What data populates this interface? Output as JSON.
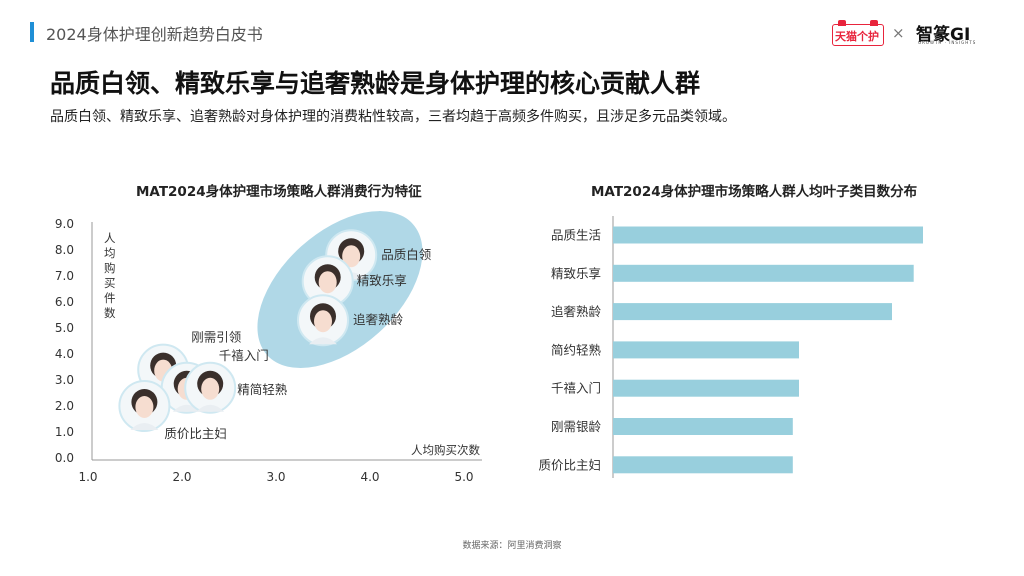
{
  "header": {
    "title": "2024身体护理创新趋势白皮书",
    "logo_tmall": "天猫个护",
    "separator": "×",
    "logo_gi": "智篆GI",
    "logo_gi_sub": "GROWTH · INSIGHTS"
  },
  "page": {
    "title": "品质白领、精致乐享与追奢熟龄是身体护理的核心贡献人群",
    "subtitle": "品质白领、精致乐享、追奢熟龄对身体护理的消费粘性较高，三者均趋于高频多件购买，且涉足多元品类领域。"
  },
  "chart_data": [
    {
      "type": "scatter",
      "title": "MAT2024身体护理市场策略人群消费行为特征",
      "xlabel": "人均购买次数",
      "ylabel": "人均购买件数",
      "xlim": [
        1.0,
        5.0
      ],
      "ylim": [
        0.0,
        9.0
      ],
      "x_ticks": [
        "1.0",
        "2.0",
        "3.0",
        "4.0",
        "5.0"
      ],
      "y_ticks": [
        "0.0",
        "1.0",
        "2.0",
        "3.0",
        "4.0",
        "5.0",
        "6.0",
        "7.0",
        "8.0",
        "9.0"
      ],
      "grid": false,
      "points": [
        {
          "label": "品质白领",
          "x": 3.8,
          "y": 7.8
        },
        {
          "label": "精致乐享",
          "x": 3.55,
          "y": 6.8
        },
        {
          "label": "追奢熟龄",
          "x": 3.5,
          "y": 5.3
        },
        {
          "label": "刚需引领",
          "x": 1.8,
          "y": 3.4
        },
        {
          "label": "千禧入门",
          "x": 2.05,
          "y": 2.7
        },
        {
          "label": "精简轻熟",
          "x": 2.3,
          "y": 2.7
        },
        {
          "label": "质价比主妇",
          "x": 1.6,
          "y": 2.0
        }
      ],
      "highlight_group": [
        "品质白领",
        "精致乐享",
        "追奢熟龄"
      ],
      "colors": {
        "axis": "#999999",
        "highlight": "#a7d4e4",
        "avatar_ring": "#cfe8f1"
      }
    },
    {
      "type": "bar",
      "orientation": "horizontal",
      "title": "MAT2024身体护理市场策略人群人均叶子类目数分布",
      "categories": [
        "品质生活",
        "精致乐享",
        "追奢熟龄",
        "简约轻熟",
        "千禧入门",
        "刚需银龄",
        "质价比主妇"
      ],
      "values": [
        100,
        97,
        90,
        60,
        60,
        58,
        58
      ],
      "unit": "relative",
      "colors": {
        "bar": "#98cfdd",
        "axis": "#999999"
      }
    }
  ],
  "footer": {
    "source": "数据来源：阿里消费洞察"
  }
}
